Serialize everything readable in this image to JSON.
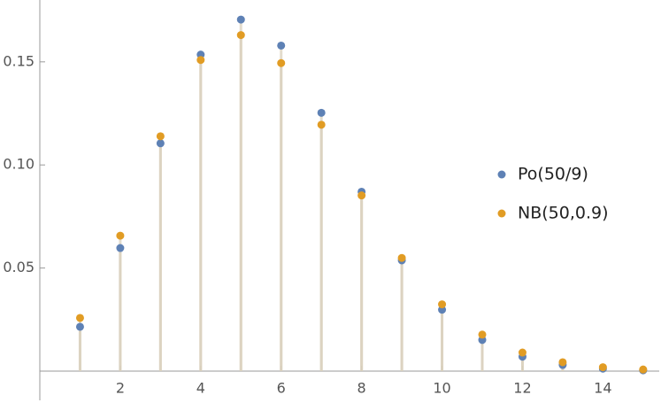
{
  "chart_data": {
    "type": "stem",
    "x": [
      1,
      2,
      3,
      4,
      5,
      6,
      7,
      8,
      9,
      10,
      11,
      12,
      13,
      14,
      15
    ],
    "series": [
      {
        "name": "Po(50/9)",
        "color": "#5e81b5",
        "values": [
          0.0215,
          0.0597,
          0.1105,
          0.1535,
          0.1705,
          0.1579,
          0.1253,
          0.087,
          0.0537,
          0.0298,
          0.0151,
          0.007,
          0.003,
          0.0012,
          0.0004
        ]
      },
      {
        "name": "NB(50,0.9)",
        "color": "#e19c24",
        "values": [
          0.0258,
          0.0657,
          0.1139,
          0.1509,
          0.163,
          0.1494,
          0.1195,
          0.0852,
          0.0549,
          0.0324,
          0.0177,
          0.009,
          0.0043,
          0.0019,
          0.0008
        ]
      }
    ],
    "stem_color": "#d9d0bc",
    "xlim": [
      0,
      15.4
    ],
    "xticks": [
      2,
      4,
      6,
      8,
      10,
      12,
      14
    ],
    "ylim": [
      0,
      0.18
    ],
    "yticks": [
      0.05,
      {
        "value": 0.1,
        "label": "0.10"
      },
      0.15
    ],
    "legend": "right"
  }
}
